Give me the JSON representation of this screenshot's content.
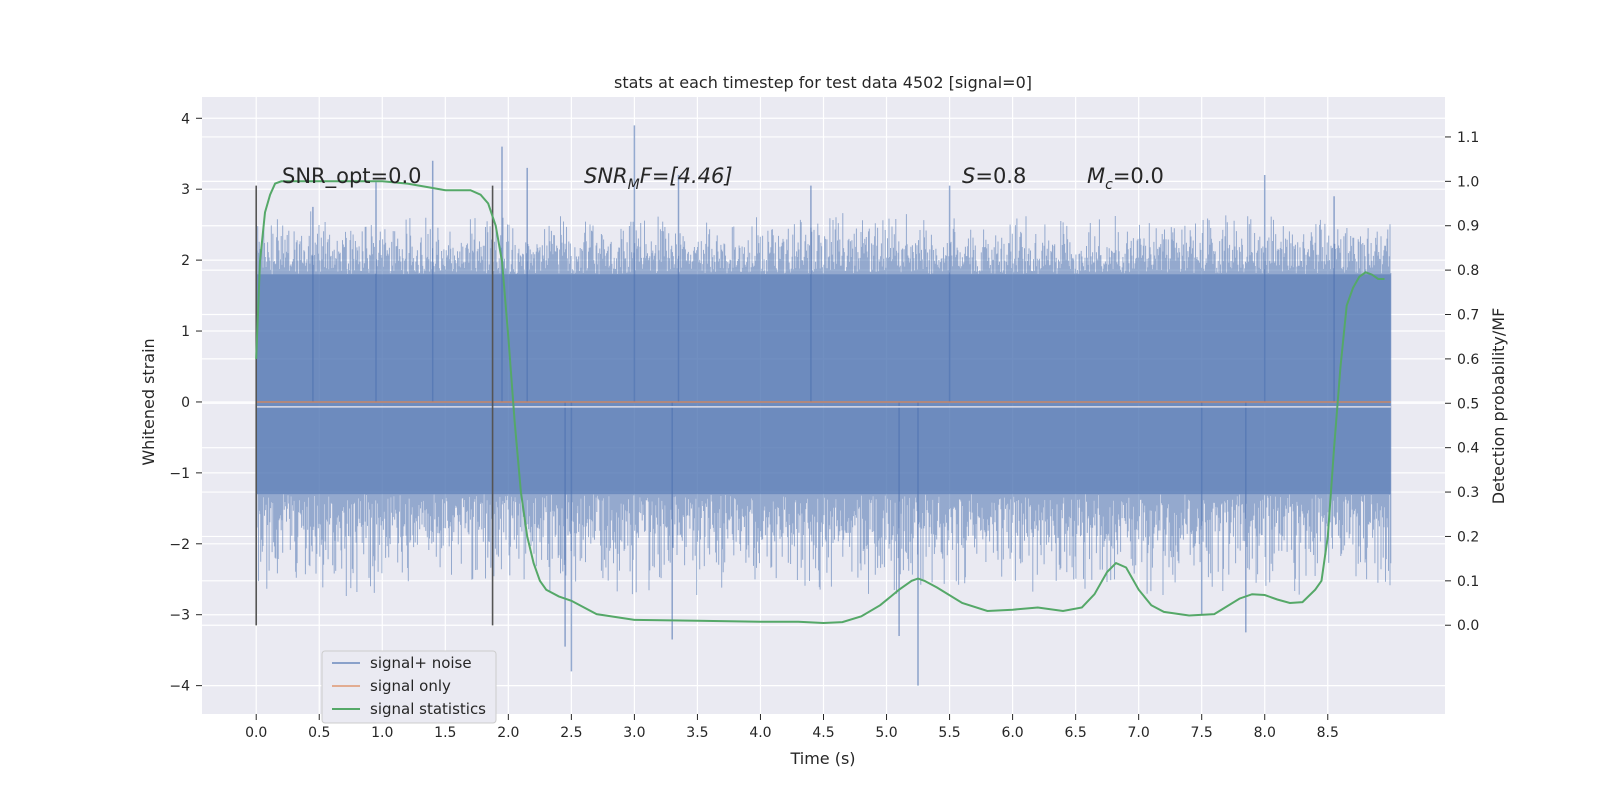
{
  "chart_data": {
    "type": "line",
    "title": "stats at each timestep for test data 4502 [signal=0]",
    "xlabel": "Time (s)",
    "ylabel": "Whitened strain",
    "ylabel_right": "Detection probability/MF",
    "xlim": [
      -0.43,
      9.43
    ],
    "ylim": [
      -4.4,
      4.3
    ],
    "ylim_right": [
      -0.2,
      1.19
    ],
    "xticks": [
      "0.0",
      "0.5",
      "1.0",
      "1.5",
      "2.0",
      "2.5",
      "3.0",
      "3.5",
      "4.0",
      "4.5",
      "5.0",
      "5.5",
      "6.0",
      "6.5",
      "7.0",
      "7.5",
      "8.0",
      "8.5"
    ],
    "yticks": [
      "−4",
      "−3",
      "−2",
      "−1",
      "0",
      "1",
      "2",
      "3",
      "4"
    ],
    "yticks_right": [
      "0.0",
      "0.1",
      "0.2",
      "0.3",
      "0.4",
      "0.5",
      "0.6",
      "0.7",
      "0.8",
      "0.9",
      "1.0",
      "1.1"
    ],
    "grid": true,
    "annotations": {
      "snr_opt": "SNR_opt=0.0",
      "snr_mf_sym": "SNR",
      "snr_mf_sub": "M",
      "snr_mf_tail": "F=[4.46]",
      "s_sym": "S",
      "s_tail": "=0.8",
      "mc_sym": "M",
      "mc_sub": "c",
      "mc_tail": "=0.0"
    },
    "vlines": [
      0.0,
      1.875
    ],
    "vline_range": [
      -3.15,
      3.05
    ],
    "noise": {
      "x_range": [
        0.0,
        9.0
      ],
      "core_band": [
        -1.3,
        1.8
      ],
      "typical_extent": [
        -2.3,
        2.4
      ],
      "min": -4.0,
      "max": 3.9
    },
    "series": [
      {
        "name": "signal+ noise",
        "color": "#4c72b0",
        "note": "whitened strain drawn as dense noise band",
        "spikes": [
          [
            0.45,
            2.75
          ],
          [
            0.95,
            3.1
          ],
          [
            1.4,
            3.4
          ],
          [
            1.95,
            3.6
          ],
          [
            2.15,
            3.3
          ],
          [
            2.45,
            -3.45
          ],
          [
            2.5,
            -3.8
          ],
          [
            3.0,
            3.9
          ],
          [
            3.35,
            3.2
          ],
          [
            3.3,
            -3.35
          ],
          [
            4.4,
            3.05
          ],
          [
            5.25,
            -4.0
          ],
          [
            5.5,
            3.05
          ],
          [
            5.1,
            -3.3
          ],
          [
            7.5,
            -3.0
          ],
          [
            7.85,
            -3.25
          ],
          [
            8.0,
            3.2
          ],
          [
            8.55,
            2.9
          ]
        ]
      },
      {
        "name": "signal only",
        "color": "#dd8452",
        "x": [
          0.0,
          9.0
        ],
        "y": [
          0.0,
          0.0
        ]
      },
      {
        "name": "signal statistics",
        "color": "#55a868",
        "axis": "right",
        "x": [
          0.0,
          0.03,
          0.07,
          0.11,
          0.15,
          0.2,
          0.3,
          0.5,
          0.8,
          1.0,
          1.2,
          1.4,
          1.5,
          1.6,
          1.7,
          1.78,
          1.84,
          1.9,
          1.95,
          2.0,
          2.05,
          2.1,
          2.15,
          2.2,
          2.25,
          2.3,
          2.4,
          2.5,
          2.7,
          3.0,
          3.5,
          4.0,
          4.3,
          4.5,
          4.65,
          4.8,
          4.95,
          5.1,
          5.2,
          5.25,
          5.3,
          5.4,
          5.6,
          5.8,
          6.0,
          6.2,
          6.4,
          6.55,
          6.65,
          6.75,
          6.82,
          6.9,
          7.0,
          7.1,
          7.2,
          7.4,
          7.6,
          7.8,
          7.9,
          8.0,
          8.1,
          8.2,
          8.3,
          8.4,
          8.45,
          8.5,
          8.55,
          8.6,
          8.65,
          8.7,
          8.75,
          8.8,
          8.85,
          8.9,
          8.95
        ],
        "y": [
          0.6,
          0.82,
          0.93,
          0.97,
          0.995,
          1.0,
          1.0,
          1.0,
          1.0,
          1.0,
          0.995,
          0.985,
          0.98,
          0.98,
          0.98,
          0.97,
          0.95,
          0.9,
          0.82,
          0.65,
          0.46,
          0.3,
          0.2,
          0.14,
          0.1,
          0.08,
          0.065,
          0.055,
          0.025,
          0.012,
          0.01,
          0.008,
          0.008,
          0.005,
          0.007,
          0.02,
          0.045,
          0.08,
          0.1,
          0.105,
          0.1,
          0.085,
          0.05,
          0.032,
          0.035,
          0.04,
          0.032,
          0.04,
          0.07,
          0.12,
          0.14,
          0.13,
          0.08,
          0.045,
          0.03,
          0.022,
          0.025,
          0.06,
          0.07,
          0.068,
          0.058,
          0.05,
          0.052,
          0.08,
          0.1,
          0.2,
          0.4,
          0.58,
          0.72,
          0.76,
          0.785,
          0.795,
          0.79,
          0.78,
          0.78
        ]
      }
    ],
    "legend_position": "lower-left"
  }
}
